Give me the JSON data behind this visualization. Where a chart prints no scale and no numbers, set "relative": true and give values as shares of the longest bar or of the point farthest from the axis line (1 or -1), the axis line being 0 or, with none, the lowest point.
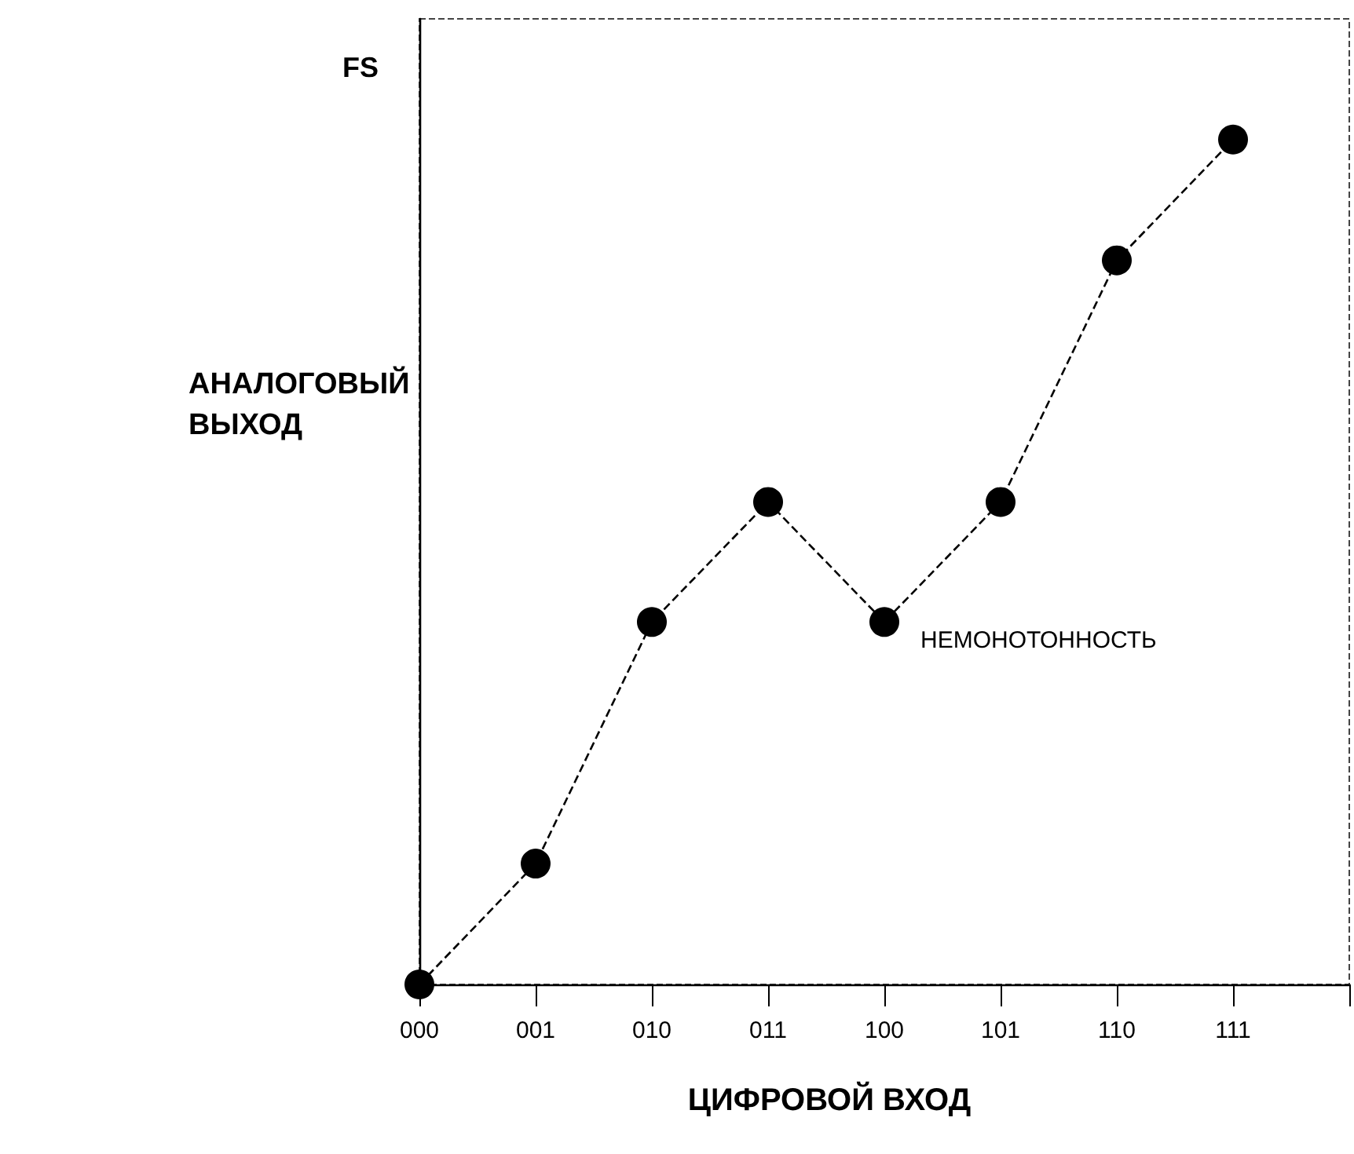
{
  "chart_data": {
    "type": "line",
    "xlabel": "ЦИФРОВОЙ ВХОД",
    "ylabel": "АНАЛОГОВЫЙ ВЫХОД",
    "categories": [
      "000",
      "001",
      "010",
      "011",
      "100",
      "101",
      "110",
      "111"
    ],
    "series": [
      {
        "color": "#000000",
        "values": [
          0,
          0.143,
          0.429,
          0.571,
          0.429,
          0.571,
          0.857,
          1
        ]
      }
    ],
    "relative": true,
    "tick_labels": "x",
    "marker": "circle",
    "line_style": "dashed",
    "grid": false,
    "annotations": [
      "FS",
      {
        "text": "НЕМОНОТОННОСТЬ",
        "x": "100",
        "y": 0.429
      }
    ]
  }
}
